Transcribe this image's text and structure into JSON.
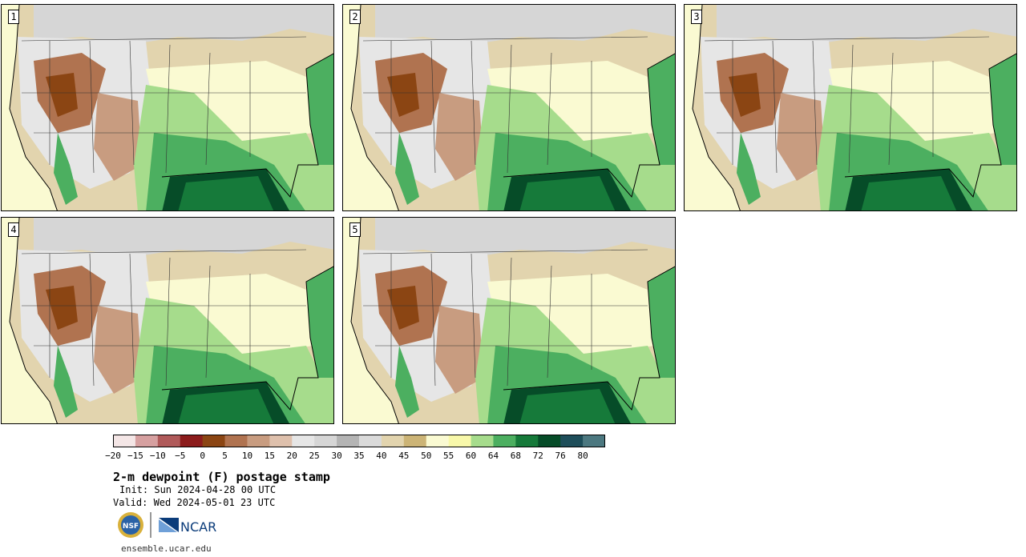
{
  "panels": [
    {
      "label": "1"
    },
    {
      "label": "2"
    },
    {
      "label": "3"
    },
    {
      "label": "4"
    },
    {
      "label": "5"
    }
  ],
  "colorbar": {
    "ticks": [
      "−20",
      "−15",
      "−10",
      "−5",
      "0",
      "5",
      "10",
      "15",
      "20",
      "25",
      "30",
      "35",
      "40",
      "45",
      "50",
      "55",
      "60",
      "64",
      "68",
      "72",
      "76",
      "80"
    ],
    "colors": [
      "#f4e6e6",
      "#d6a0a0",
      "#b05a5a",
      "#8c1c1c",
      "#8b4513",
      "#b07350",
      "#c89c80",
      "#dec0ac",
      "#e6e6e6",
      "#d6d6d6",
      "#b4b4b4",
      "#dadada",
      "#e2d4ae",
      "#ccb476",
      "#fafad2",
      "#f8f8aa",
      "#a6dc8c",
      "#4caf60",
      "#167a3a",
      "#064c28",
      "#1e4e5a",
      "#4c7880"
    ]
  },
  "info": {
    "title": "2-m dewpoint (F) postage stamp",
    "init": "Init: Sun 2024-04-28 00 UTC",
    "valid": "Valid: Wed 2024-05-01 23 UTC",
    "website": "ensemble.ucar.edu"
  },
  "logos": {
    "nsf": "NSF",
    "ncar": "NCAR"
  }
}
